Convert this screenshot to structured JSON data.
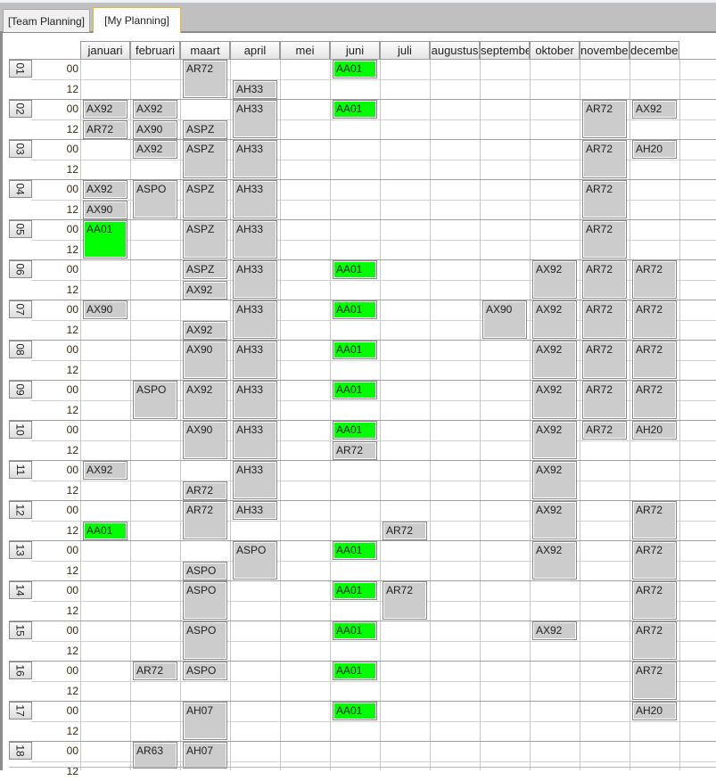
{
  "tabs": [
    {
      "label": "[Team Planning]",
      "selected": false
    },
    {
      "label": "[My Planning]",
      "selected": true
    }
  ],
  "months": [
    "januari",
    "februari",
    "maart",
    "april",
    "mei",
    "juni",
    "juli",
    "augustus",
    "september",
    "oktober",
    "november",
    "december"
  ],
  "days": [
    "01",
    "02",
    "03",
    "04",
    "05",
    "06",
    "07",
    "08",
    "09",
    "10",
    "11",
    "12",
    "13",
    "14",
    "15",
    "16",
    "17",
    "18"
  ],
  "hours": [
    "00",
    "12"
  ],
  "colors": {
    "default_block": "#cccccc",
    "green_block": "#00ff00",
    "active_tab_border": "#e8b830"
  },
  "entries": [
    {
      "day": "01",
      "hour": "00",
      "month": "maart",
      "code": "AR72",
      "slots": 2,
      "green": false
    },
    {
      "day": "01",
      "hour": "12",
      "month": "april",
      "code": "AH33",
      "slots": 1,
      "green": false
    },
    {
      "day": "01",
      "hour": "00",
      "month": "juni",
      "code": "AA01",
      "slots": 1,
      "green": true
    },
    {
      "day": "02",
      "hour": "00",
      "month": "januari",
      "code": "AX92",
      "slots": 1,
      "green": false
    },
    {
      "day": "02",
      "hour": "12",
      "month": "januari",
      "code": "AR72",
      "slots": 1,
      "green": false
    },
    {
      "day": "02",
      "hour": "00",
      "month": "februari",
      "code": "AX92",
      "slots": 1,
      "green": false
    },
    {
      "day": "02",
      "hour": "12",
      "month": "februari",
      "code": "AX90",
      "slots": 1,
      "green": false
    },
    {
      "day": "02",
      "hour": "12",
      "month": "maart",
      "code": "ASPZ",
      "slots": 1,
      "green": false
    },
    {
      "day": "02",
      "hour": "00",
      "month": "april",
      "code": "AH33",
      "slots": 2,
      "green": false
    },
    {
      "day": "02",
      "hour": "00",
      "month": "juni",
      "code": "AA01",
      "slots": 1,
      "green": true
    },
    {
      "day": "02",
      "hour": "00",
      "month": "november",
      "code": "AR72",
      "slots": 2,
      "green": false
    },
    {
      "day": "02",
      "hour": "00",
      "month": "december",
      "code": "AX92",
      "slots": 1,
      "green": false
    },
    {
      "day": "03",
      "hour": "00",
      "month": "februari",
      "code": "AX92",
      "slots": 1,
      "green": false
    },
    {
      "day": "03",
      "hour": "00",
      "month": "maart",
      "code": "ASPZ",
      "slots": 2,
      "green": false
    },
    {
      "day": "03",
      "hour": "00",
      "month": "april",
      "code": "AH33",
      "slots": 2,
      "green": false
    },
    {
      "day": "03",
      "hour": "00",
      "month": "november",
      "code": "AR72",
      "slots": 2,
      "green": false
    },
    {
      "day": "03",
      "hour": "00",
      "month": "december",
      "code": "AH20",
      "slots": 1,
      "green": false
    },
    {
      "day": "04",
      "hour": "00",
      "month": "januari",
      "code": "AX92",
      "slots": 1,
      "green": false
    },
    {
      "day": "04",
      "hour": "12",
      "month": "januari",
      "code": "AX90",
      "slots": 1,
      "green": false
    },
    {
      "day": "04",
      "hour": "00",
      "month": "februari",
      "code": "ASPO",
      "slots": 2,
      "green": false
    },
    {
      "day": "04",
      "hour": "00",
      "month": "maart",
      "code": "ASPZ",
      "slots": 2,
      "green": false
    },
    {
      "day": "04",
      "hour": "00",
      "month": "april",
      "code": "AH33",
      "slots": 2,
      "green": false
    },
    {
      "day": "04",
      "hour": "00",
      "month": "november",
      "code": "AR72",
      "slots": 2,
      "green": false
    },
    {
      "day": "05",
      "hour": "00",
      "month": "januari",
      "code": "AA01",
      "slots": 2,
      "green": true
    },
    {
      "day": "05",
      "hour": "00",
      "month": "maart",
      "code": "ASPZ",
      "slots": 2,
      "green": false
    },
    {
      "day": "05",
      "hour": "00",
      "month": "april",
      "code": "AH33",
      "slots": 2,
      "green": false
    },
    {
      "day": "05",
      "hour": "00",
      "month": "november",
      "code": "AR72",
      "slots": 2,
      "green": false
    },
    {
      "day": "06",
      "hour": "00",
      "month": "maart",
      "code": "ASPZ",
      "slots": 1,
      "green": false
    },
    {
      "day": "06",
      "hour": "12",
      "month": "maart",
      "code": "AX92",
      "slots": 1,
      "green": false
    },
    {
      "day": "06",
      "hour": "00",
      "month": "april",
      "code": "AH33",
      "slots": 2,
      "green": false
    },
    {
      "day": "06",
      "hour": "00",
      "month": "juni",
      "code": "AA01",
      "slots": 1,
      "green": true
    },
    {
      "day": "06",
      "hour": "00",
      "month": "oktober",
      "code": "AX92",
      "slots": 2,
      "green": false
    },
    {
      "day": "06",
      "hour": "00",
      "month": "november",
      "code": "AR72",
      "slots": 2,
      "green": false
    },
    {
      "day": "06",
      "hour": "00",
      "month": "december",
      "code": "AR72",
      "slots": 2,
      "green": false
    },
    {
      "day": "07",
      "hour": "00",
      "month": "januari",
      "code": "AX90",
      "slots": 1,
      "green": false
    },
    {
      "day": "07",
      "hour": "12",
      "month": "maart",
      "code": "AX92",
      "slots": 1,
      "green": false
    },
    {
      "day": "07",
      "hour": "00",
      "month": "april",
      "code": "AH33",
      "slots": 2,
      "green": false
    },
    {
      "day": "07",
      "hour": "00",
      "month": "juni",
      "code": "AA01",
      "slots": 1,
      "green": true
    },
    {
      "day": "07",
      "hour": "00",
      "month": "september",
      "code": "AX90",
      "slots": 2,
      "green": false
    },
    {
      "day": "07",
      "hour": "00",
      "month": "oktober",
      "code": "AX92",
      "slots": 2,
      "green": false
    },
    {
      "day": "07",
      "hour": "00",
      "month": "november",
      "code": "AR72",
      "slots": 2,
      "green": false
    },
    {
      "day": "07",
      "hour": "00",
      "month": "december",
      "code": "AR72",
      "slots": 2,
      "green": false
    },
    {
      "day": "08",
      "hour": "00",
      "month": "maart",
      "code": "AX90",
      "slots": 2,
      "green": false
    },
    {
      "day": "08",
      "hour": "00",
      "month": "april",
      "code": "AH33",
      "slots": 2,
      "green": false
    },
    {
      "day": "08",
      "hour": "00",
      "month": "juni",
      "code": "AA01",
      "slots": 1,
      "green": true
    },
    {
      "day": "08",
      "hour": "00",
      "month": "oktober",
      "code": "AX92",
      "slots": 2,
      "green": false
    },
    {
      "day": "08",
      "hour": "00",
      "month": "november",
      "code": "AR72",
      "slots": 2,
      "green": false
    },
    {
      "day": "08",
      "hour": "00",
      "month": "december",
      "code": "AR72",
      "slots": 2,
      "green": false
    },
    {
      "day": "09",
      "hour": "00",
      "month": "februari",
      "code": "ASPO",
      "slots": 2,
      "green": false
    },
    {
      "day": "09",
      "hour": "00",
      "month": "maart",
      "code": "AX92",
      "slots": 2,
      "green": false
    },
    {
      "day": "09",
      "hour": "00",
      "month": "april",
      "code": "AH33",
      "slots": 2,
      "green": false
    },
    {
      "day": "09",
      "hour": "00",
      "month": "juni",
      "code": "AA01",
      "slots": 1,
      "green": true
    },
    {
      "day": "09",
      "hour": "00",
      "month": "oktober",
      "code": "AX92",
      "slots": 2,
      "green": false
    },
    {
      "day": "09",
      "hour": "00",
      "month": "november",
      "code": "AR72",
      "slots": 2,
      "green": false
    },
    {
      "day": "09",
      "hour": "00",
      "month": "december",
      "code": "AR72",
      "slots": 2,
      "green": false
    },
    {
      "day": "10",
      "hour": "00",
      "month": "maart",
      "code": "AX90",
      "slots": 2,
      "green": false
    },
    {
      "day": "10",
      "hour": "00",
      "month": "april",
      "code": "AH33",
      "slots": 2,
      "green": false
    },
    {
      "day": "10",
      "hour": "00",
      "month": "juni",
      "code": "AA01",
      "slots": 1,
      "green": true
    },
    {
      "day": "10",
      "hour": "12",
      "month": "juni",
      "code": "AR72",
      "slots": 1,
      "green": false
    },
    {
      "day": "10",
      "hour": "00",
      "month": "oktober",
      "code": "AX92",
      "slots": 2,
      "green": false
    },
    {
      "day": "10",
      "hour": "00",
      "month": "november",
      "code": "AR72",
      "slots": 1,
      "green": false
    },
    {
      "day": "10",
      "hour": "00",
      "month": "december",
      "code": "AH20",
      "slots": 1,
      "green": false
    },
    {
      "day": "11",
      "hour": "00",
      "month": "januari",
      "code": "AX92",
      "slots": 1,
      "green": false
    },
    {
      "day": "11",
      "hour": "12",
      "month": "maart",
      "code": "AR72",
      "slots": 1,
      "green": false
    },
    {
      "day": "11",
      "hour": "00",
      "month": "april",
      "code": "AH33",
      "slots": 2,
      "green": false
    },
    {
      "day": "11",
      "hour": "00",
      "month": "oktober",
      "code": "AX92",
      "slots": 2,
      "green": false
    },
    {
      "day": "12",
      "hour": "12",
      "month": "januari",
      "code": "AA01",
      "slots": 1,
      "green": true
    },
    {
      "day": "12",
      "hour": "00",
      "month": "maart",
      "code": "AR72",
      "slots": 2,
      "green": false
    },
    {
      "day": "12",
      "hour": "00",
      "month": "april",
      "code": "AH33",
      "slots": 1,
      "green": false
    },
    {
      "day": "12",
      "hour": "12",
      "month": "juli",
      "code": "AR72",
      "slots": 1,
      "green": false
    },
    {
      "day": "12",
      "hour": "00",
      "month": "oktober",
      "code": "AX92",
      "slots": 2,
      "green": false
    },
    {
      "day": "12",
      "hour": "00",
      "month": "december",
      "code": "AR72",
      "slots": 2,
      "green": false
    },
    {
      "day": "13",
      "hour": "12",
      "month": "maart",
      "code": "ASPO",
      "slots": 1,
      "green": false
    },
    {
      "day": "13",
      "hour": "00",
      "month": "april",
      "code": "ASPO",
      "slots": 2,
      "green": false
    },
    {
      "day": "13",
      "hour": "00",
      "month": "juni",
      "code": "AA01",
      "slots": 1,
      "green": true
    },
    {
      "day": "13",
      "hour": "00",
      "month": "oktober",
      "code": "AX92",
      "slots": 2,
      "green": false
    },
    {
      "day": "13",
      "hour": "00",
      "month": "december",
      "code": "AR72",
      "slots": 2,
      "green": false
    },
    {
      "day": "14",
      "hour": "00",
      "month": "maart",
      "code": "ASPO",
      "slots": 2,
      "green": false
    },
    {
      "day": "14",
      "hour": "00",
      "month": "juni",
      "code": "AA01",
      "slots": 1,
      "green": true
    },
    {
      "day": "14",
      "hour": "00",
      "month": "juli",
      "code": "AR72",
      "slots": 2,
      "green": false
    },
    {
      "day": "14",
      "hour": "00",
      "month": "december",
      "code": "AR72",
      "slots": 2,
      "green": false
    },
    {
      "day": "15",
      "hour": "00",
      "month": "maart",
      "code": "ASPO",
      "slots": 2,
      "green": false
    },
    {
      "day": "15",
      "hour": "00",
      "month": "juni",
      "code": "AA01",
      "slots": 1,
      "green": true
    },
    {
      "day": "15",
      "hour": "00",
      "month": "oktober",
      "code": "AX92",
      "slots": 1,
      "green": false
    },
    {
      "day": "15",
      "hour": "00",
      "month": "december",
      "code": "AR72",
      "slots": 2,
      "green": false
    },
    {
      "day": "16",
      "hour": "00",
      "month": "februari",
      "code": "AR72",
      "slots": 1,
      "green": false
    },
    {
      "day": "16",
      "hour": "00",
      "month": "maart",
      "code": "ASPO",
      "slots": 1,
      "green": false
    },
    {
      "day": "16",
      "hour": "00",
      "month": "juni",
      "code": "AA01",
      "slots": 1,
      "green": true
    },
    {
      "day": "16",
      "hour": "00",
      "month": "december",
      "code": "AR72",
      "slots": 2,
      "green": false
    },
    {
      "day": "17",
      "hour": "00",
      "month": "maart",
      "code": "AH07",
      "slots": 2,
      "green": false
    },
    {
      "day": "17",
      "hour": "00",
      "month": "juni",
      "code": "AA01",
      "slots": 1,
      "green": true
    },
    {
      "day": "17",
      "hour": "00",
      "month": "december",
      "code": "AH20",
      "slots": 1,
      "green": false
    },
    {
      "day": "18",
      "hour": "00",
      "month": "februari",
      "code": "AR63",
      "slots": 2,
      "green": false
    },
    {
      "day": "18",
      "hour": "00",
      "month": "maart",
      "code": "AH07",
      "slots": 2,
      "green": false
    }
  ]
}
